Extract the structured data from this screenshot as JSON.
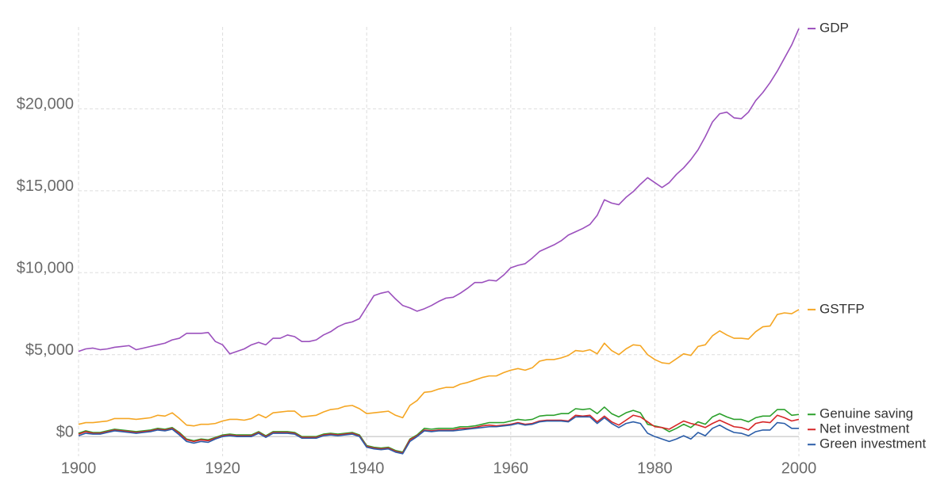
{
  "chart_data": {
    "type": "line",
    "x": [
      1900,
      1901,
      1902,
      1903,
      1904,
      1905,
      1906,
      1907,
      1908,
      1909,
      1910,
      1911,
      1912,
      1913,
      1914,
      1915,
      1916,
      1917,
      1918,
      1919,
      1920,
      1921,
      1922,
      1923,
      1924,
      1925,
      1926,
      1927,
      1928,
      1929,
      1930,
      1931,
      1932,
      1933,
      1934,
      1935,
      1936,
      1937,
      1938,
      1939,
      1940,
      1941,
      1942,
      1943,
      1944,
      1945,
      1946,
      1947,
      1948,
      1949,
      1950,
      1951,
      1952,
      1953,
      1954,
      1955,
      1956,
      1957,
      1958,
      1959,
      1960,
      1961,
      1962,
      1963,
      1964,
      1965,
      1966,
      1967,
      1968,
      1969,
      1970,
      1971,
      1972,
      1973,
      1974,
      1975,
      1976,
      1977,
      1978,
      1979,
      1980,
      1981,
      1982,
      1983,
      1984,
      1985,
      1986,
      1987,
      1988,
      1989,
      1990,
      1991,
      1992,
      1993,
      1994,
      1995,
      1996,
      1997,
      1998,
      1999,
      2000
    ],
    "series": [
      {
        "name": "GDP",
        "color": "#9b50bd",
        "values": [
          5200,
          5350,
          5400,
          5300,
          5350,
          5450,
          5500,
          5550,
          5300,
          5400,
          5500,
          5600,
          5700,
          5900,
          6000,
          6300,
          6300,
          6300,
          6350,
          5800,
          5600,
          5050,
          5200,
          5350,
          5600,
          5750,
          5600,
          6000,
          6000,
          6200,
          6100,
          5800,
          5800,
          5900,
          6200,
          6400,
          6700,
          6900,
          7000,
          7200,
          7900,
          8600,
          8750,
          8850,
          8400,
          8000,
          7850,
          7650,
          7800,
          8000,
          8250,
          8450,
          8500,
          8750,
          9050,
          9400,
          9400,
          9550,
          9500,
          9850,
          10300,
          10450,
          10550,
          10900,
          11300,
          11500,
          11700,
          11950,
          12300,
          12500,
          12700,
          12950,
          13500,
          14450,
          14250,
          14150,
          14600,
          14950,
          15400,
          15800,
          15500,
          15200,
          15500,
          16000,
          16400,
          16900,
          17500,
          18300,
          19200,
          19700,
          19800,
          19450,
          19400,
          19800,
          20500,
          21000,
          21600,
          22300,
          23100,
          23900,
          24900
        ]
      },
      {
        "name": "GSTFP",
        "color": "#f5a623",
        "values": [
          750,
          850,
          850,
          900,
          950,
          1100,
          1100,
          1100,
          1050,
          1100,
          1150,
          1300,
          1250,
          1450,
          1100,
          700,
          650,
          750,
          750,
          800,
          950,
          1050,
          1050,
          1000,
          1100,
          1350,
          1150,
          1450,
          1500,
          1550,
          1550,
          1200,
          1250,
          1300,
          1500,
          1650,
          1700,
          1850,
          1900,
          1700,
          1400,
          1450,
          1500,
          1550,
          1300,
          1150,
          1900,
          2200,
          2700,
          2750,
          2900,
          3000,
          3000,
          3200,
          3300,
          3450,
          3600,
          3700,
          3700,
          3900,
          4050,
          4150,
          4050,
          4200,
          4600,
          4700,
          4700,
          4800,
          4950,
          5250,
          5200,
          5300,
          5050,
          5700,
          5250,
          5000,
          5350,
          5600,
          5550,
          5000,
          4700,
          4500,
          4450,
          4750,
          5050,
          4950,
          5500,
          5600,
          6150,
          6450,
          6200,
          6000,
          6000,
          5950,
          6400,
          6700,
          6750,
          7450,
          7550,
          7500,
          7750
        ]
      },
      {
        "name": "Genuine saving",
        "color": "#2ca02c",
        "values": [
          200,
          350,
          250,
          250,
          350,
          450,
          400,
          350,
          300,
          350,
          400,
          500,
          450,
          550,
          250,
          -150,
          -250,
          -150,
          -200,
          -50,
          100,
          150,
          100,
          100,
          100,
          300,
          50,
          300,
          300,
          300,
          250,
          0,
          0,
          0,
          150,
          200,
          150,
          200,
          250,
          100,
          -550,
          -650,
          -700,
          -650,
          -850,
          -950,
          -150,
          100,
          500,
          450,
          500,
          500,
          500,
          600,
          600,
          650,
          750,
          850,
          850,
          850,
          950,
          1050,
          1000,
          1050,
          1250,
          1300,
          1300,
          1400,
          1400,
          1700,
          1650,
          1700,
          1400,
          1800,
          1400,
          1200,
          1450,
          1600,
          1450,
          750,
          650,
          550,
          300,
          500,
          750,
          550,
          900,
          750,
          1200,
          1400,
          1200,
          1050,
          1050,
          900,
          1150,
          1250,
          1250,
          1650,
          1650,
          1300,
          1350
        ]
      },
      {
        "name": "Net investment",
        "color": "#d62728",
        "values": [
          150,
          300,
          200,
          200,
          300,
          400,
          350,
          300,
          250,
          300,
          350,
          450,
          400,
          500,
          200,
          -200,
          -300,
          -200,
          -250,
          -100,
          50,
          100,
          50,
          50,
          50,
          250,
          0,
          250,
          250,
          250,
          200,
          -50,
          -50,
          -50,
          100,
          150,
          100,
          150,
          200,
          50,
          -600,
          -700,
          -750,
          -700,
          -900,
          -1000,
          -200,
          50,
          400,
          350,
          400,
          400,
          400,
          500,
          500,
          550,
          650,
          700,
          650,
          700,
          750,
          850,
          750,
          800,
          950,
          1000,
          1000,
          1000,
          950,
          1300,
          1250,
          1300,
          900,
          1250,
          900,
          700,
          1000,
          1300,
          1200,
          900,
          600,
          550,
          450,
          700,
          950,
          800,
          700,
          550,
          800,
          1000,
          800,
          600,
          550,
          400,
          800,
          900,
          850,
          1300,
          1150,
          950,
          1050
        ]
      },
      {
        "name": "Green investment",
        "color": "#2b5da8",
        "values": [
          50,
          200,
          150,
          150,
          250,
          350,
          300,
          250,
          200,
          250,
          300,
          400,
          350,
          450,
          100,
          -300,
          -400,
          -300,
          -350,
          -150,
          0,
          50,
          0,
          0,
          0,
          200,
          -50,
          200,
          200,
          200,
          150,
          -100,
          -100,
          -100,
          50,
          100,
          50,
          100,
          150,
          0,
          -650,
          -750,
          -800,
          -750,
          -950,
          -1050,
          -300,
          0,
          350,
          300,
          350,
          350,
          350,
          400,
          450,
          500,
          550,
          600,
          600,
          650,
          700,
          800,
          700,
          750,
          900,
          950,
          950,
          950,
          900,
          1200,
          1200,
          1200,
          800,
          1150,
          800,
          550,
          800,
          900,
          800,
          200,
          0,
          -150,
          -300,
          -150,
          50,
          -150,
          250,
          50,
          500,
          700,
          450,
          250,
          200,
          50,
          300,
          400,
          400,
          850,
          800,
          500,
          500
        ]
      }
    ],
    "xlim": [
      1900,
      2000
    ],
    "xticks": [
      1900,
      1920,
      1940,
      1960,
      1980,
      2000
    ],
    "ylim": [
      -1200,
      25000
    ],
    "yticks": [
      {
        "value": 0,
        "label": "$0"
      },
      {
        "value": 5000,
        "label": "$5,000"
      },
      {
        "value": 10000,
        "label": "$10,000"
      },
      {
        "value": 15000,
        "label": "$15,000"
      },
      {
        "value": 20000,
        "label": "$20,000"
      }
    ],
    "grid": true
  }
}
